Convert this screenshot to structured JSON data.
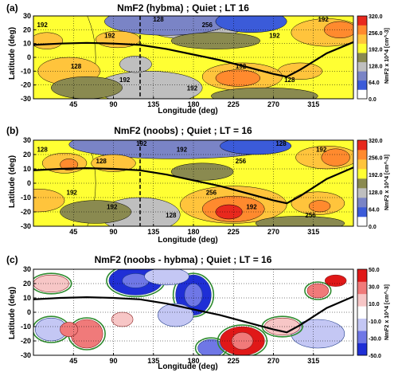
{
  "chart_data": [
    {
      "type": "heatmap",
      "panel": "(a)",
      "title": "NmF2 (hybma) ; Quiet ; LT 16",
      "xlabel": "Longitude (deg)",
      "ylabel": "Latitude (deg)",
      "xlim": [
        0,
        360
      ],
      "ylim": [
        -30,
        30
      ],
      "x_ticks": [
        "45",
        "90",
        "135",
        "180",
        "225",
        "270",
        "315"
      ],
      "y_ticks": [
        "30",
        "20",
        "10",
        "0",
        "-10",
        "-20",
        "-30"
      ],
      "colorbar_label": "NmF2 x 10^4 [cm^-3]",
      "colorbar_ticks": [
        "320.0",
        "256.0",
        "192.0",
        "128.0",
        "64.0",
        "0.0"
      ],
      "contour_labels": [
        "192",
        "128",
        "192",
        "192",
        "128",
        "192",
        "256",
        "192",
        "192",
        "128",
        "192"
      ],
      "colors": [
        "#ffffff",
        "#3b5bd9",
        "#7a84c6",
        "#bfbfbf",
        "#8a8a50",
        "#ffff33",
        "#ffc43c",
        "#ff8a2e",
        "#e8281d"
      ]
    },
    {
      "type": "heatmap",
      "panel": "(b)",
      "title": "NmF2 (noobs) ; Quiet ; LT = 16",
      "xlabel": "Longitude (deg)",
      "ylabel": "Latitude (deg)",
      "xlim": [
        0,
        360
      ],
      "ylim": [
        -30,
        30
      ],
      "x_ticks": [
        "45",
        "90",
        "135",
        "180",
        "225",
        "270",
        "315"
      ],
      "y_ticks": [
        "30",
        "20",
        "10",
        "0",
        "-10",
        "-20",
        "-30"
      ],
      "colorbar_label": "NmF2 x 10^4 [cm^-3]",
      "colorbar_ticks": [
        "320.0",
        "256.0",
        "192.0",
        "128.0",
        "64.0",
        "0.0"
      ],
      "contour_labels": [
        "128",
        "192",
        "128",
        "192",
        "192",
        "128",
        "192",
        "256",
        "256",
        "192",
        "128",
        "256",
        "192"
      ],
      "colors": [
        "#ffffff",
        "#3b5bd9",
        "#7a84c6",
        "#bfbfbf",
        "#8a8a50",
        "#ffff33",
        "#ffc43c",
        "#ff8a2e",
        "#e8281d"
      ]
    },
    {
      "type": "heatmap",
      "panel": "(c)",
      "title": "NmF2 (noobs - hybma) ; Quiet ; LT = 16",
      "xlabel": "Longitude (deg)",
      "ylabel": "Latitude (deg)",
      "xlim": [
        0,
        360
      ],
      "ylim": [
        -30,
        30
      ],
      "x_ticks": [
        "45",
        "90",
        "135",
        "180",
        "225",
        "270",
        "315"
      ],
      "y_ticks": [
        "30",
        "20",
        "10",
        "0",
        "-10",
        "-20",
        "-30"
      ],
      "colorbar_label": "NmF2 x 10^4 [cm^-3]",
      "colorbar_ticks": [
        "50.0",
        "30.0",
        "10.0",
        "-10.0",
        "-30.0",
        "-50.0"
      ],
      "colors": [
        "#1f2fd6",
        "#6f77e6",
        "#c4c7f4",
        "#ffffff",
        "#f7c6c6",
        "#f07a7a",
        "#e01818"
      ]
    }
  ],
  "magnetic_equator": {
    "lon": [
      0,
      30,
      60,
      90,
      120,
      150,
      180,
      210,
      240,
      270,
      285,
      300,
      330,
      360
    ],
    "lat": [
      9,
      10,
      10.5,
      10,
      9,
      6,
      2,
      -2,
      -7,
      -12,
      -14,
      -9,
      3,
      11
    ]
  },
  "dashed_meridian_lon": 120
}
